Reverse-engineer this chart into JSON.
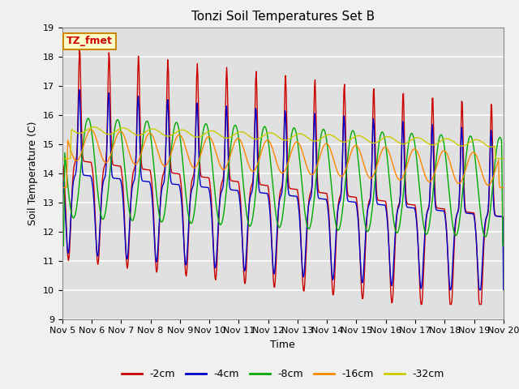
{
  "title": "Tonzi Soil Temperatures Set B",
  "xlabel": "Time",
  "ylabel": "Soil Temperature (C)",
  "ylim": [
    9.0,
    19.0
  ],
  "yticks": [
    9.0,
    10.0,
    11.0,
    12.0,
    13.0,
    14.0,
    15.0,
    16.0,
    17.0,
    18.0,
    19.0
  ],
  "xtick_labels": [
    "Nov 5",
    "Nov 6",
    "Nov 7",
    "Nov 8",
    "Nov 9",
    "Nov 10",
    "Nov 11",
    "Nov 12",
    "Nov 13",
    "Nov 14",
    "Nov 15",
    "Nov 16",
    "Nov 17",
    "Nov 18",
    "Nov 19",
    "Nov 20"
  ],
  "series_colors": [
    "#cc0000",
    "#0000cc",
    "#00aa00",
    "#ff8800",
    "#cccc00"
  ],
  "series_labels": [
    "-2cm",
    "-4cm",
    "-8cm",
    "-16cm",
    "-32cm"
  ],
  "annotation_text": "TZ_fmet",
  "annotation_bbox_facecolor": "#ffffcc",
  "annotation_bbox_edgecolor": "#cc8800",
  "fig_facecolor": "#f0f0f0",
  "plot_bg_color": "#e0e0e0",
  "grid_color": "#ffffff",
  "title_fontsize": 11,
  "axis_label_fontsize": 9,
  "tick_fontsize": 8,
  "legend_fontsize": 9
}
